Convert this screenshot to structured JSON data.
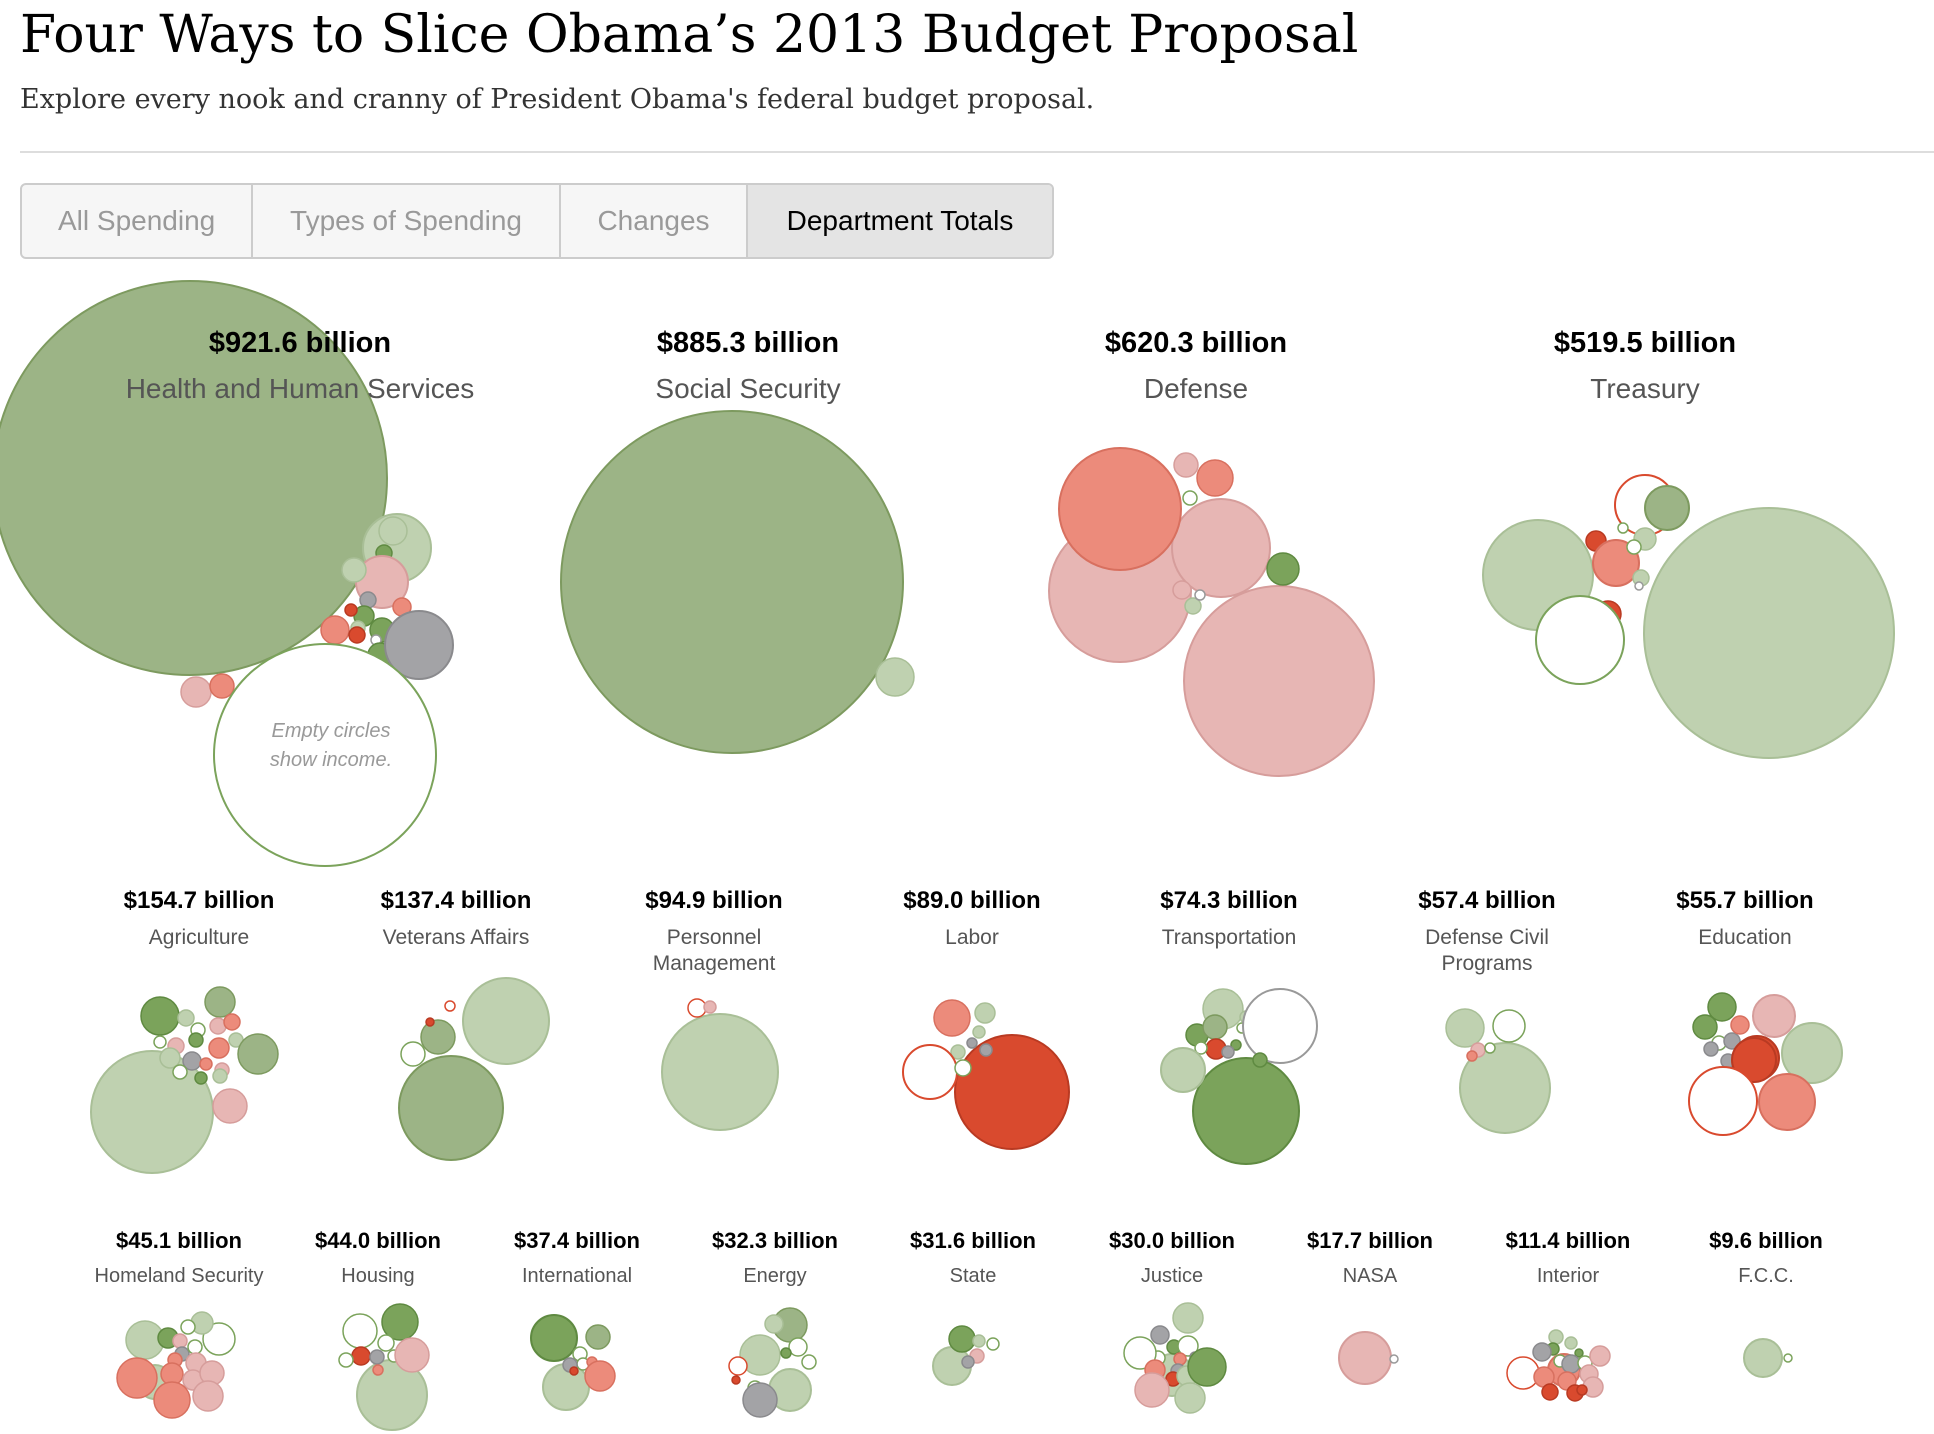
{
  "header": {
    "title": "Four Ways to Slice Obama’s 2013 Budget Proposal",
    "subtitle": "Explore every nook and cranny of President Obama's federal budget proposal."
  },
  "tabs": [
    {
      "label": "All Spending",
      "active": false
    },
    {
      "label": "Types of Spending",
      "active": false
    },
    {
      "label": "Changes",
      "active": false
    },
    {
      "label": "Department Totals",
      "active": true
    }
  ],
  "colors": {
    "increase_strong": "#7ba35b",
    "increase_medium": "#9cb486",
    "increase_light": "#bfd1b0",
    "decrease_strong": "#d94a2e",
    "decrease_medium": "#ec8b7b",
    "decrease_light": "#e7b6b4",
    "unchanged": "#a3a3a6",
    "income_outline": "#7ba35b"
  },
  "legend": {
    "income_note_line1": "Empty circles",
    "income_note_line2": "show income."
  },
  "chart_data": {
    "type": "bubble",
    "unit": "billion dollars",
    "title": "Four Ways to Slice Obama’s 2013 Budget Proposal",
    "departments": [
      {
        "name": "Health and Human Services",
        "amount": "$921.6 billion",
        "value": 921.6
      },
      {
        "name": "Social Security",
        "amount": "$885.3 billion",
        "value": 885.3
      },
      {
        "name": "Defense",
        "amount": "$620.3 billion",
        "value": 620.3
      },
      {
        "name": "Treasury",
        "amount": "$519.5 billion",
        "value": 519.5
      },
      {
        "name": "Agriculture",
        "amount": "$154.7 billion",
        "value": 154.7
      },
      {
        "name": "Veterans Affairs",
        "amount": "$137.4 billion",
        "value": 137.4
      },
      {
        "name": "Personnel Management",
        "amount": "$94.9 billion",
        "value": 94.9
      },
      {
        "name": "Labor",
        "amount": "$89.0 billion",
        "value": 89.0
      },
      {
        "name": "Transportation",
        "amount": "$74.3 billion",
        "value": 74.3
      },
      {
        "name": "Defense Civil Programs",
        "amount": "$57.4 billion",
        "value": 57.4
      },
      {
        "name": "Education",
        "amount": "$55.7 billion",
        "value": 55.7
      },
      {
        "name": "Homeland Security",
        "amount": "$45.1 billion",
        "value": 45.1
      },
      {
        "name": "Housing",
        "amount": "$44.0 billion",
        "value": 44.0
      },
      {
        "name": "International",
        "amount": "$37.4 billion",
        "value": 37.4
      },
      {
        "name": "Energy",
        "amount": "$32.3 billion",
        "value": 32.3
      },
      {
        "name": "State",
        "amount": "$31.6 billion",
        "value": 31.6
      },
      {
        "name": "Justice",
        "amount": "$30.0 billion",
        "value": 30.0
      },
      {
        "name": "NASA",
        "amount": "$17.7 billion",
        "value": 17.7
      },
      {
        "name": "Interior",
        "amount": "$11.4 billion",
        "value": 11.4
      },
      {
        "name": "F.C.C.",
        "amount": "$9.6 billion",
        "value": 9.6
      }
    ]
  }
}
